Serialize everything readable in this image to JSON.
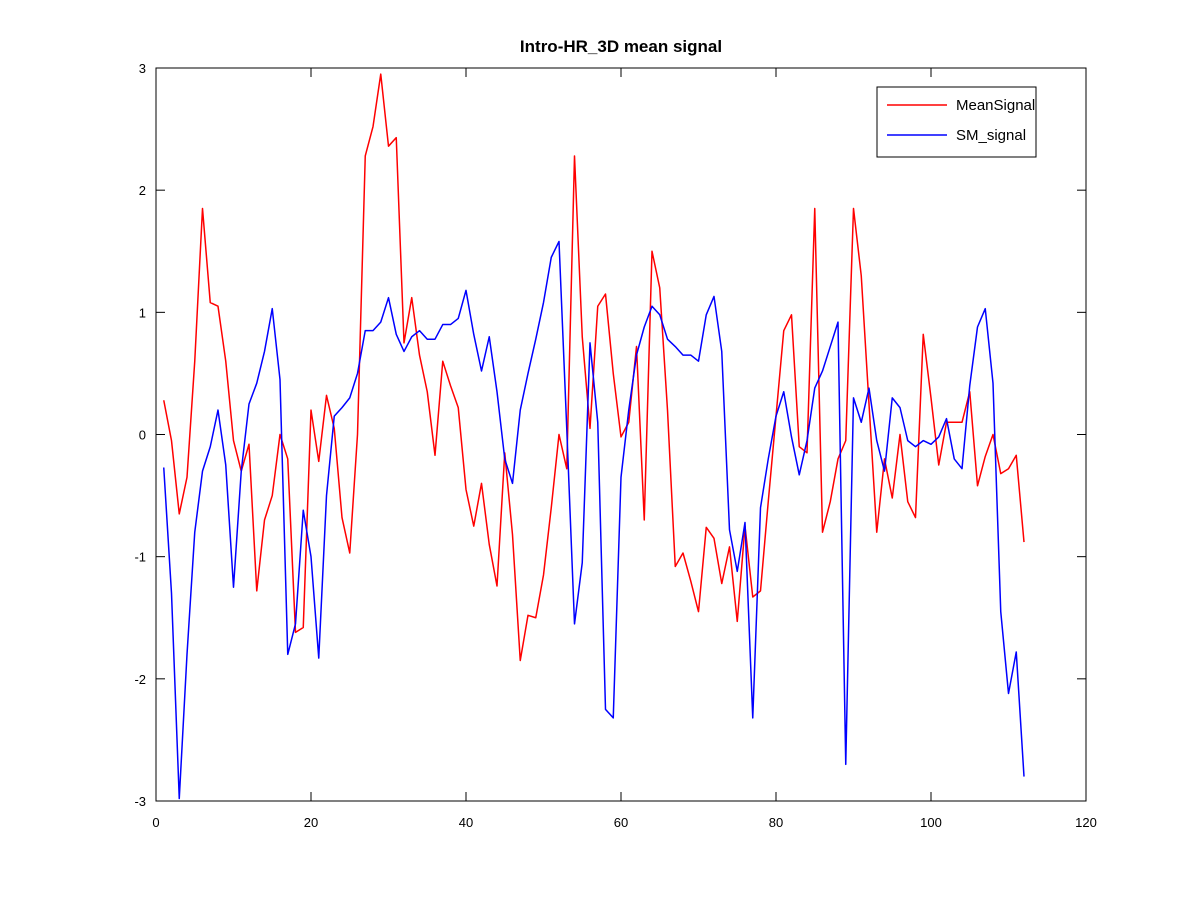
{
  "chart_data": {
    "type": "line",
    "title": "Intro-HR_3D mean signal",
    "x": [
      1,
      2,
      3,
      4,
      5,
      6,
      7,
      8,
      9,
      10,
      11,
      12,
      13,
      14,
      15,
      16,
      17,
      18,
      19,
      20,
      21,
      22,
      23,
      24,
      25,
      26,
      27,
      28,
      29,
      30,
      31,
      32,
      33,
      34,
      35,
      36,
      37,
      38,
      39,
      40,
      41,
      42,
      43,
      44,
      45,
      46,
      47,
      48,
      49,
      50,
      51,
      52,
      53,
      54,
      55,
      56,
      57,
      58,
      59,
      60,
      61,
      62,
      63,
      64,
      65,
      66,
      67,
      68,
      69,
      70,
      71,
      72,
      73,
      74,
      75,
      76,
      77,
      78,
      79,
      80,
      81,
      82,
      83,
      84,
      85,
      86,
      87,
      88,
      89,
      90,
      91,
      92,
      93,
      94,
      95,
      96,
      97,
      98,
      99,
      100,
      101,
      102,
      103,
      104,
      105,
      106,
      107,
      108,
      109,
      110,
      111,
      112
    ],
    "series": [
      {
        "name": "MeanSignal",
        "color": "#ff0000",
        "values": [
          0.28,
          -0.05,
          -0.65,
          -0.35,
          0.6,
          1.85,
          1.08,
          1.05,
          0.6,
          -0.05,
          -0.3,
          -0.08,
          -1.28,
          -0.7,
          -0.5,
          0.0,
          -0.2,
          -1.62,
          -1.58,
          0.2,
          -0.22,
          0.32,
          0.05,
          -0.68,
          -0.97,
          0.0,
          2.28,
          2.52,
          2.95,
          2.36,
          2.43,
          0.75,
          1.12,
          0.65,
          0.35,
          -0.17,
          0.6,
          0.4,
          0.22,
          -0.45,
          -0.75,
          -0.4,
          -0.9,
          -1.24,
          -0.15,
          -0.82,
          -1.85,
          -1.48,
          -1.5,
          -1.15,
          -0.6,
          0.0,
          -0.28,
          2.28,
          0.8,
          0.05,
          1.05,
          1.15,
          0.5,
          -0.02,
          0.1,
          0.72,
          -0.7,
          1.5,
          1.2,
          0.2,
          -1.08,
          -0.97,
          -1.2,
          -1.45,
          -0.76,
          -0.85,
          -1.22,
          -0.92,
          -1.53,
          -0.75,
          -1.33,
          -1.28,
          -0.55,
          0.15,
          0.85,
          0.98,
          -0.1,
          -0.15,
          1.85,
          -0.8,
          -0.55,
          -0.2,
          -0.05,
          1.85,
          1.3,
          0.25,
          -0.8,
          -0.2,
          -0.52,
          0.0,
          -0.55,
          -0.68,
          0.82,
          0.3,
          -0.25,
          0.1,
          0.1,
          0.1,
          0.35,
          -0.42,
          -0.18,
          0.0,
          -0.32,
          -0.28,
          -0.17,
          -0.88
        ]
      },
      {
        "name": "SM_signal",
        "color": "#0000ff",
        "values": [
          -0.27,
          -1.3,
          -2.98,
          -1.8,
          -0.8,
          -0.3,
          -0.1,
          0.2,
          -0.25,
          -1.25,
          -0.3,
          0.25,
          0.42,
          0.68,
          1.03,
          0.45,
          -1.8,
          -1.55,
          -0.62,
          -1.0,
          -1.83,
          -0.5,
          0.15,
          0.22,
          0.3,
          0.5,
          0.85,
          0.85,
          0.92,
          1.12,
          0.82,
          0.68,
          0.8,
          0.85,
          0.78,
          0.78,
          0.9,
          0.9,
          0.95,
          1.18,
          0.82,
          0.52,
          0.8,
          0.35,
          -0.2,
          -0.4,
          0.2,
          0.5,
          0.78,
          1.08,
          1.45,
          1.58,
          0.05,
          -1.55,
          -1.05,
          0.75,
          0.1,
          -2.25,
          -2.32,
          -0.35,
          0.2,
          0.65,
          0.88,
          1.05,
          0.98,
          0.78,
          0.72,
          0.65,
          0.65,
          0.6,
          0.98,
          1.13,
          0.68,
          -0.78,
          -1.12,
          -0.72,
          -2.32,
          -0.6,
          -0.2,
          0.15,
          0.35,
          -0.02,
          -0.33,
          -0.05,
          0.38,
          0.52,
          0.72,
          0.92,
          -2.7,
          0.3,
          0.1,
          0.38,
          -0.05,
          -0.3,
          0.3,
          0.22,
          -0.05,
          -0.1,
          -0.05,
          -0.08,
          -0.02,
          0.13,
          -0.2,
          -0.28,
          0.4,
          0.88,
          1.03,
          0.42,
          -1.45,
          -2.12,
          -1.78,
          -2.8
        ]
      }
    ],
    "xlim": [
      0,
      120
    ],
    "xticks": [
      0,
      20,
      40,
      60,
      80,
      100,
      120
    ],
    "ylim": [
      -3,
      3
    ],
    "yticks": [
      -3,
      -2,
      -1,
      0,
      1,
      2,
      3
    ],
    "legend": "upper right",
    "grid": false
  }
}
